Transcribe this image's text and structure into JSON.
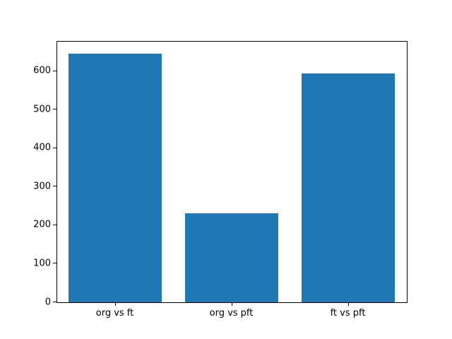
{
  "chart_data": {
    "type": "bar",
    "title": "",
    "xlabel": "",
    "ylabel": "",
    "categories": [
      "org vs ft",
      "org vs pft",
      "ft vs pft"
    ],
    "values": [
      645,
      232,
      595
    ],
    "ylim": [
      0,
      677
    ],
    "yticks": [
      0,
      100,
      200,
      300,
      400,
      500,
      600
    ],
    "bar_color": "#1f77b4",
    "axis_color": "#000000",
    "background_color": "#ffffff",
    "grid": false,
    "legend_position": "none"
  }
}
